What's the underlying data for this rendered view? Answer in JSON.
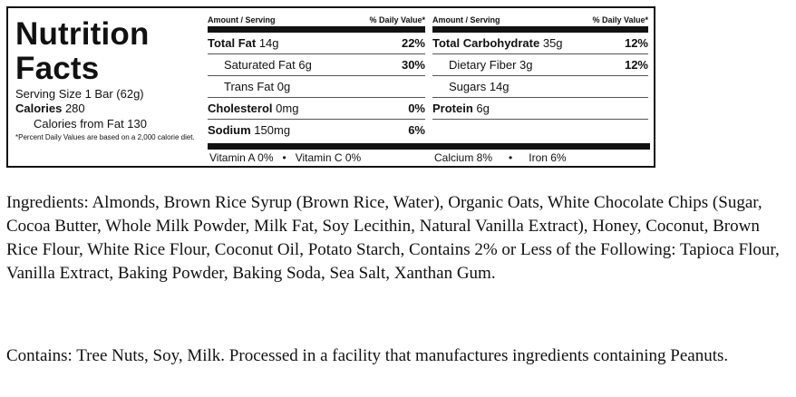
{
  "facts": {
    "title": "Nutrition\nFacts",
    "serving_size": "Serving Size 1 Bar (62g)",
    "calories_label": "Calories",
    "calories_value": "280",
    "calories_from_fat": "Calories from Fat 130",
    "footnote": "*Percent Daily Values are based on a 2,000 calorie diet.",
    "column_header_amount": "Amount / Serving",
    "column_header_dv": "% Daily Value*",
    "left_rows": [
      {
        "name": "Total Fat",
        "amount": "14g",
        "dv": "22%",
        "bold": true
      },
      {
        "name": "Saturated Fat",
        "amount": "6g",
        "dv": "30%",
        "bold": false
      },
      {
        "name": "Trans Fat",
        "amount": "0g",
        "dv": "",
        "bold": false
      },
      {
        "name": "Cholesterol",
        "amount": "0mg",
        "dv": "0%",
        "bold": true
      },
      {
        "name": "Sodium",
        "amount": "150mg",
        "dv": "6%",
        "bold": true
      }
    ],
    "right_rows": [
      {
        "name": "Total Carbohydrate",
        "amount": "35g",
        "dv": "12%",
        "bold": true
      },
      {
        "name": "Dietary Fiber",
        "amount": "3g",
        "dv": "12%",
        "bold": false
      },
      {
        "name": "Sugars",
        "amount": "14g",
        "dv": "",
        "bold": false
      },
      {
        "name": "Protein",
        "amount": "6g",
        "dv": "",
        "bold": true
      }
    ],
    "vitamins_left": [
      "Vitamin A 0%",
      "•",
      "Vitamin C 0%"
    ],
    "vitamins_right": [
      "Calcium 8%",
      "•",
      "Iron 6%"
    ]
  },
  "ingredients_text": "Ingredients: Almonds, Brown Rice Syrup (Brown Rice, Water), Organic Oats, White Chocolate Chips (Sugar, Cocoa Butter, Whole Milk Powder, Milk Fat, Soy Lecithin, Natural Vanilla Extract), Honey, Coconut, Brown Rice Flour, White Rice Flour, Coconut Oil, Potato Starch, Contains 2% or Less of the Following: Tapioca Flour, Vanilla Extract, Baking Powder, Baking Soda, Sea Salt, Xanthan Gum.",
  "contains_text": "Contains: Tree Nuts, Soy, Milk. Processed in a facility that manufactures ingredients containing Peanuts."
}
